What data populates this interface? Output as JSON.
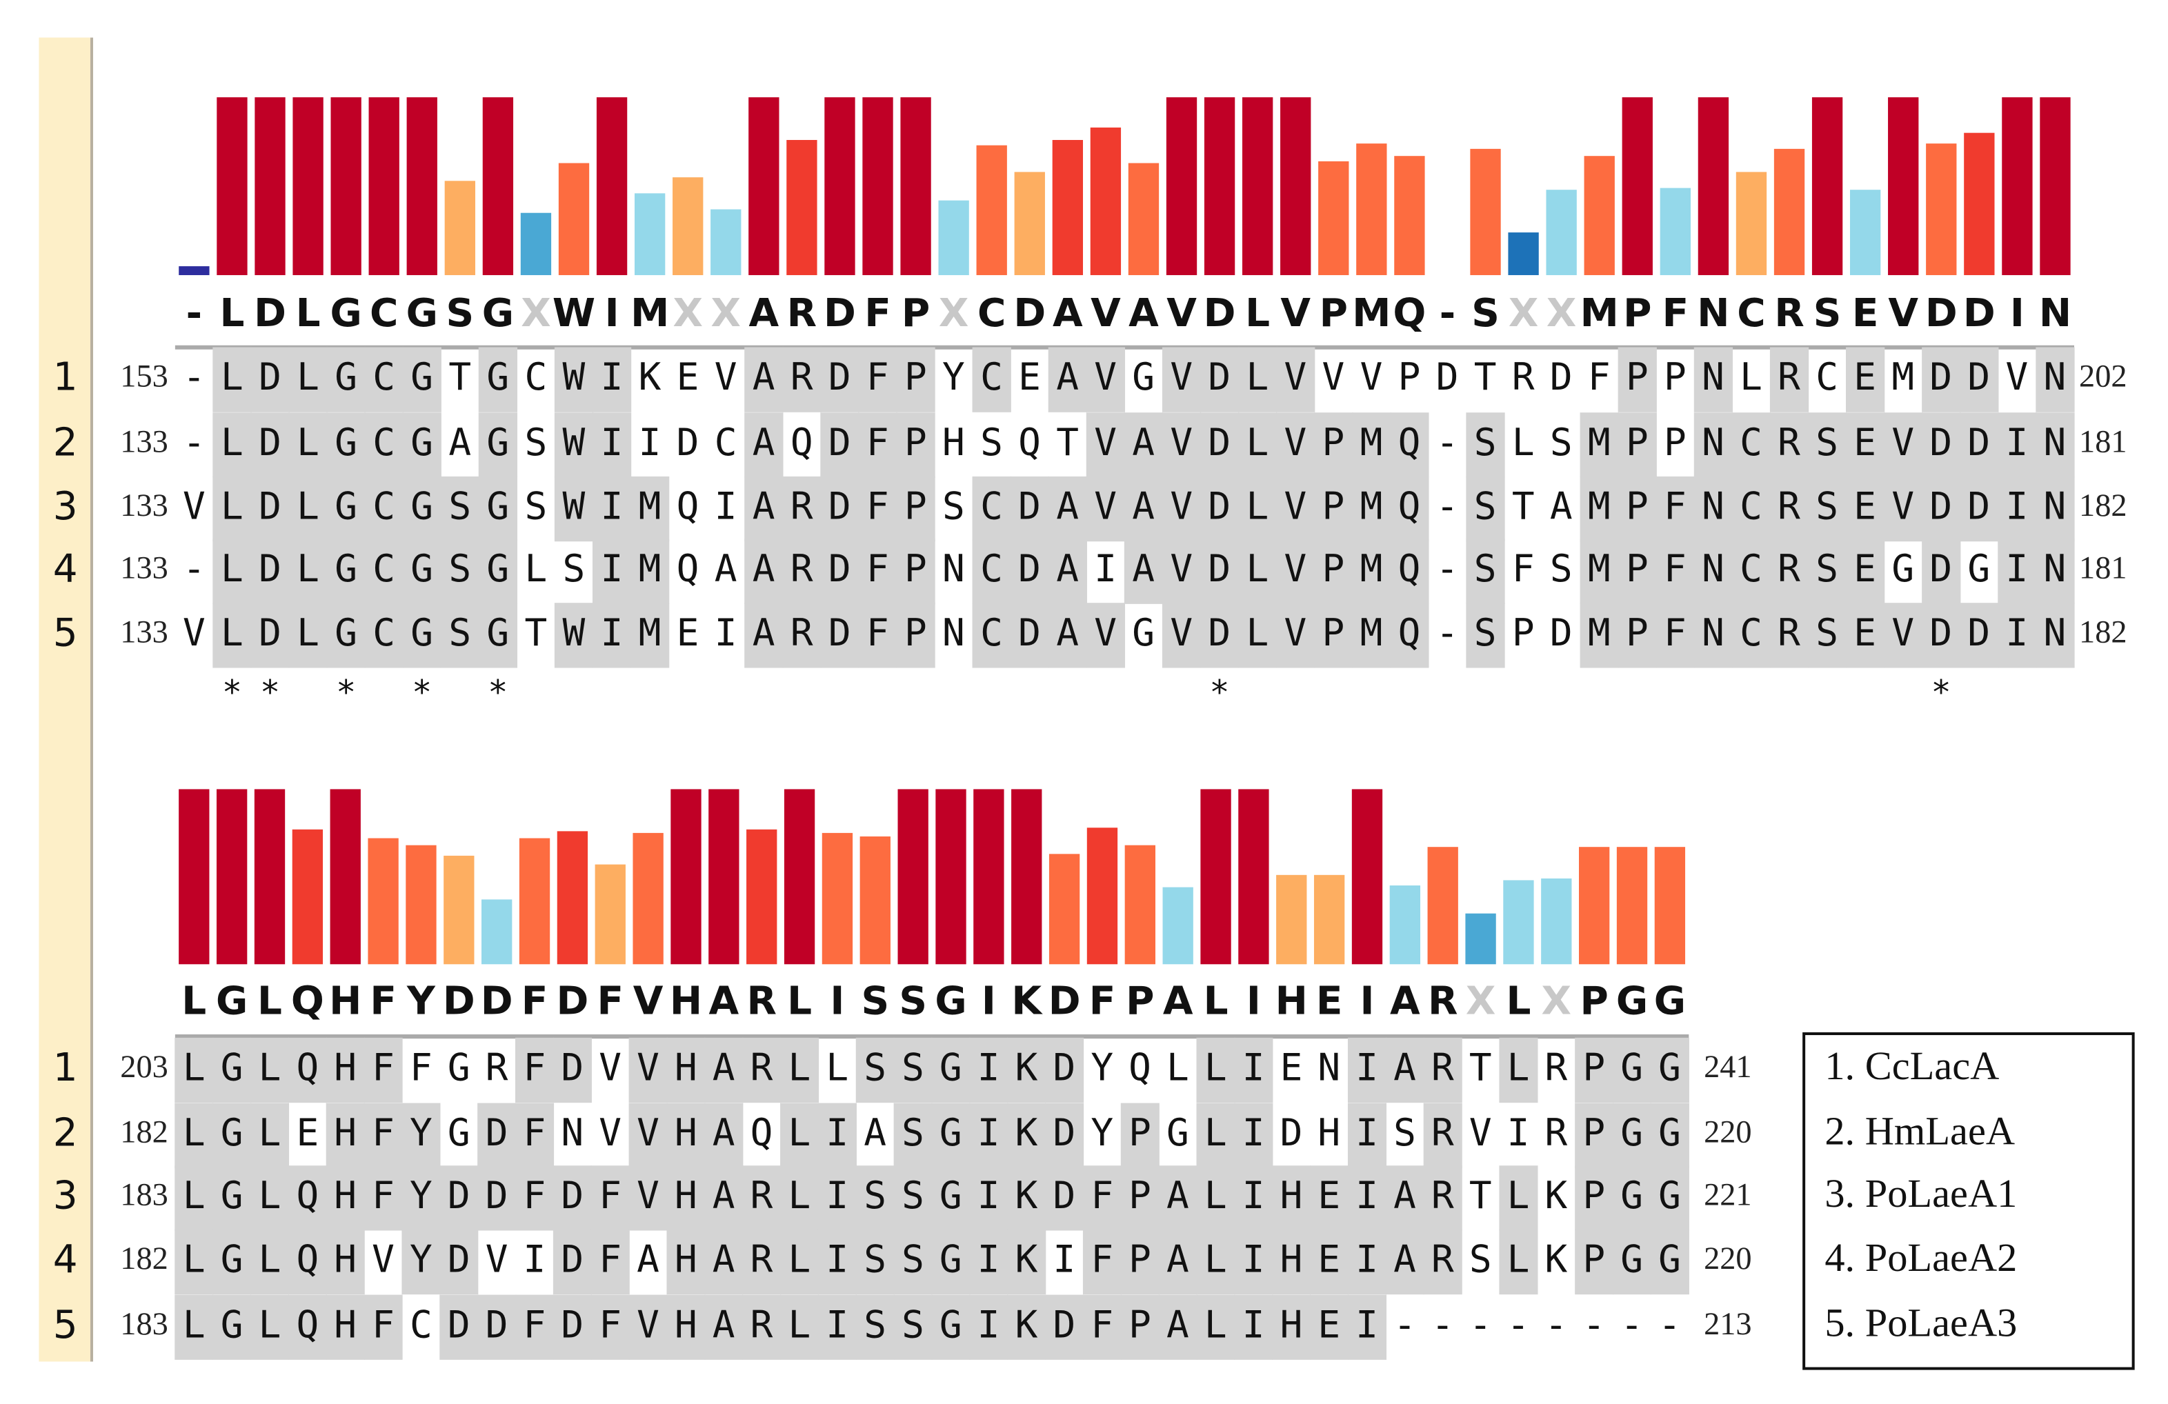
{
  "blocks": [
    {
      "consensus": [
        "-",
        "L",
        "D",
        "L",
        "G",
        "C",
        "G",
        "S",
        "G",
        "X",
        "W",
        "I",
        "M",
        "X",
        "X",
        "A",
        "R",
        "D",
        "F",
        "P",
        "X",
        "C",
        "D",
        "A",
        "V",
        "A",
        "V",
        "D",
        "L",
        "V",
        "P",
        "M",
        "Q",
        "-",
        "S",
        "X",
        "X",
        "M",
        "P",
        "F",
        "N",
        "C",
        "R",
        "S",
        "E",
        "V",
        "D",
        "D",
        "I",
        "N"
      ],
      "conservation": [
        0.05,
        1,
        1,
        1,
        1,
        1,
        1,
        0.53,
        1,
        0.35,
        0.63,
        1,
        0.46,
        0.55,
        0.37,
        1,
        0.76,
        1,
        1,
        1,
        0.42,
        0.73,
        0.58,
        0.76,
        0.83,
        0.63,
        1,
        1,
        1,
        1,
        0.64,
        0.74,
        0.67,
        0,
        0.71,
        0.24,
        0.48,
        0.67,
        1,
        0.49,
        1,
        0.58,
        0.71,
        1,
        0.48,
        1,
        0.74,
        0.8,
        1,
        1
      ],
      "colors": [
        "#2d2d9e",
        "#c00026",
        "#c00026",
        "#c00026",
        "#c00026",
        "#c00026",
        "#c00026",
        "#fdae61",
        "#c00026",
        "#4aa8d4",
        "#fd6c40",
        "#c00026",
        "#94d8ea",
        "#fdae61",
        "#94d8ea",
        "#c00026",
        "#f03b2e",
        "#c00026",
        "#c00026",
        "#c00026",
        "#94d8ea",
        "#fd6c40",
        "#fdae61",
        "#f03b2e",
        "#f03b2e",
        "#fd6c40",
        "#c00026",
        "#c00026",
        "#c00026",
        "#c00026",
        "#fd6c40",
        "#fd6c40",
        "#fd6c40",
        "#fd6c40",
        "#fd6c40",
        "#1d72b8",
        "#94d8ea",
        "#fd6c40",
        "#c00026",
        "#94d8ea",
        "#c00026",
        "#fdae61",
        "#fd6c40",
        "#c00026",
        "#94d8ea",
        "#c00026",
        "#fd6c40",
        "#f03b2e",
        "#c00026",
        "#c00026"
      ],
      "rows": [
        {
          "num": "1",
          "start": "153",
          "seq": "-LDLGCGTGCWIKEVARDFPYCEAVGVDLVVVPDTRDFPPNLRCEMDDVN",
          "end": "202"
        },
        {
          "num": "2",
          "start": "133",
          "seq": "-LDLGCGAGSWIIDCAQDFPHSQTVAVDLVPMQ-SLSMPPNCRSEVDDIN",
          "end": "181"
        },
        {
          "num": "3",
          "start": "133",
          "seq": "VLDLGCGSGSWIMQIARDFPSCDAVAVDLVPMQ-STAMPFNCRSEVDDIN",
          "end": "182"
        },
        {
          "num": "4",
          "start": "133",
          "seq": "-LDLGCGSGLSIMQAARDFPNCDAIAVDLVPMQ-SFSMPFNCRSEGDGIN",
          "end": "181"
        },
        {
          "num": "5",
          "start": "133",
          "seq": "VLDLGCGSGTWIMEIARDFPNCDAVGVDLVPMQ-SPDMPFNCRSEVDDIN",
          "end": "182"
        }
      ],
      "stars": " ** * * *                  *                  *   "
    },
    {
      "consensus": [
        "L",
        "G",
        "L",
        "Q",
        "H",
        "F",
        "Y",
        "D",
        "D",
        "F",
        "D",
        "F",
        "V",
        "H",
        "A",
        "R",
        "L",
        "I",
        "S",
        "S",
        "G",
        "I",
        "K",
        "D",
        "F",
        "P",
        "A",
        "L",
        "I",
        "H",
        "E",
        "I",
        "A",
        "R",
        "X",
        "L",
        "X",
        "P",
        "G",
        "G"
      ],
      "conservation": [
        1,
        1,
        1,
        0.77,
        1,
        0.72,
        0.68,
        0.62,
        0.37,
        0.72,
        0.76,
        0.57,
        0.75,
        1,
        1,
        0.77,
        1,
        0.75,
        0.73,
        1,
        1,
        1,
        1,
        0.63,
        0.78,
        0.68,
        0.44,
        1,
        1,
        0.51,
        0.51,
        1,
        0.45,
        0.67,
        0.29,
        0.48,
        0.49,
        0.67,
        0.67,
        0.67
      ],
      "colors": [
        "#c00026",
        "#c00026",
        "#c00026",
        "#f03b2e",
        "#c00026",
        "#fd6c40",
        "#fd6c40",
        "#fdae61",
        "#94d8ea",
        "#fd6c40",
        "#f03b2e",
        "#fdae61",
        "#fd6c40",
        "#c00026",
        "#c00026",
        "#f03b2e",
        "#c00026",
        "#fd6c40",
        "#fd6c40",
        "#c00026",
        "#c00026",
        "#c00026",
        "#c00026",
        "#fd6c40",
        "#f03b2e",
        "#fd6c40",
        "#94d8ea",
        "#c00026",
        "#c00026",
        "#fdae61",
        "#fdae61",
        "#c00026",
        "#94d8ea",
        "#fd6c40",
        "#4aa8d4",
        "#94d8ea",
        "#94d8ea",
        "#fd6c40",
        "#fd6c40",
        "#fd6c40"
      ],
      "rows": [
        {
          "num": "1",
          "start": "203",
          "seq": "LGLQHFFGRFDVVHARLLSSGIKDYQLLIENIARTLRPGG",
          "end": "241"
        },
        {
          "num": "2",
          "start": "182",
          "seq": "LGLEHFYGDFNVVHAQLIASGIKDYPGLIDHISRVIRPGG",
          "end": "220"
        },
        {
          "num": "3",
          "start": "183",
          "seq": "LGLQHFYDDFDFVHARLISSGIKDFPALIHEIARTLKPGG",
          "end": "221"
        },
        {
          "num": "4",
          "start": "182",
          "seq": "LGLQHVYDVIDFAHARLISSGIKIFPALIHEIARSLKPGG",
          "end": "220"
        },
        {
          "num": "5",
          "start": "183",
          "seq": "LGLQHFCDDFDFVHARLISSGIKDFPALIHEI--------",
          "end": "213"
        }
      ]
    }
  ],
  "legend": [
    "1. CcLacA",
    "2. HmLaeA",
    "3. PoLaeA1",
    "4. PoLaeA2",
    "5. PoLaeA3"
  ]
}
